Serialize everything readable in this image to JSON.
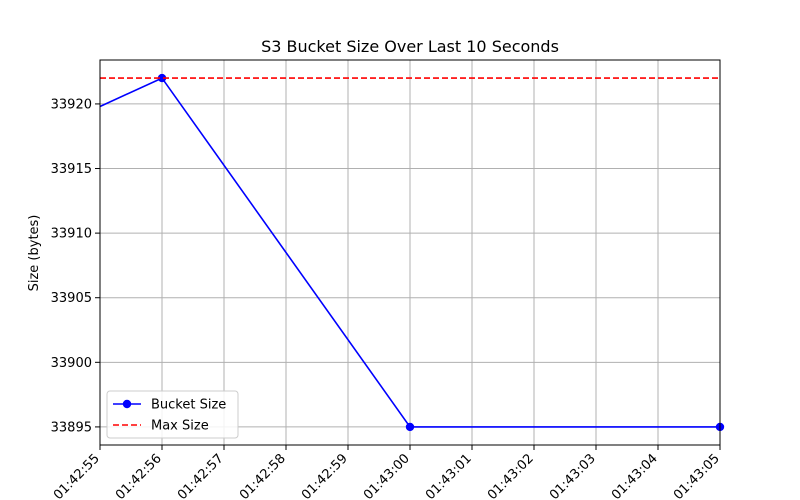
{
  "chart_data": {
    "type": "line",
    "title": "S3 Bucket Size Over Last 10 Seconds",
    "xlabel": "",
    "ylabel": "Size (bytes)",
    "x_ticks": [
      "01:42:55",
      "01:42:56",
      "01:42:57",
      "01:42:58",
      "01:42:59",
      "01:43:00",
      "01:43:01",
      "01:43:02",
      "01:43:03",
      "01:43:04",
      "01:43:05"
    ],
    "x_seconds": [
      0,
      10
    ],
    "y_ticks": [
      33895,
      33900,
      33905,
      33910,
      33915,
      33920
    ],
    "ylim": [
      33893.6,
      33923.4
    ],
    "grid": true,
    "legend_position": "lower-left",
    "series": [
      {
        "name": "Bucket Size",
        "style": "solid-with-markers",
        "color": "#0000ff",
        "points": [
          {
            "x": 0,
            "y": 33919.8,
            "marker": false
          },
          {
            "x": 1,
            "y": 33922,
            "marker": true
          },
          {
            "x": 5,
            "y": 33895,
            "marker": true
          },
          {
            "x": 10,
            "y": 33895,
            "marker": true
          }
        ]
      },
      {
        "name": "Max Size",
        "style": "dashed",
        "color": "#ff0000",
        "value": 33922
      }
    ]
  }
}
